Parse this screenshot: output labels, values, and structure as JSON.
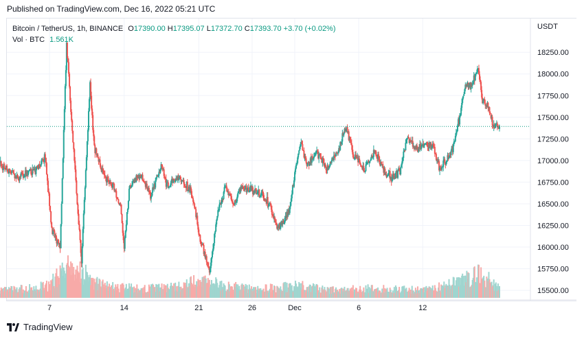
{
  "header": {
    "published": "Published on TradingView.com, Dec 16, 2022 05:21 UTC"
  },
  "legend": {
    "symbol": "Bitcoin / TetherUS, 1h, BINANCE",
    "open_label": "O",
    "open": "17390.00",
    "high_label": "H",
    "high": "17395.07",
    "low_label": "L",
    "low": "17372.70",
    "close_label": "C",
    "close": "17393.70",
    "change": "+3.70 (+0.02%)",
    "vol_label": "Vol · BTC",
    "vol": "1.561K"
  },
  "footer": {
    "brand": "TradingView"
  },
  "colors": {
    "up": "#26a69a",
    "down": "#ef5350",
    "up_vol": "#9fd5cf",
    "down_vol": "#f7aaa8",
    "last_price": "#089981",
    "grid": "#f0f3fa",
    "text": "#131722"
  },
  "chart_data": {
    "type": "candlestick",
    "symbol": "Bitcoin / TetherUS",
    "interval": "1h",
    "exchange": "BINANCE",
    "y_axis_unit": "USDT",
    "ylim": [
      15390,
      18640
    ],
    "y_ticks": [
      "18250.00",
      "18000.00",
      "17750.00",
      "17500.00",
      "17250.00",
      "17000.00",
      "16750.00",
      "16500.00",
      "16250.00",
      "16000.00",
      "15750.00",
      "15500.00"
    ],
    "x_ticks": [
      {
        "label": "7",
        "day": 7
      },
      {
        "label": "14",
        "day": 14
      },
      {
        "label": "21",
        "day": 21
      },
      {
        "label": "26",
        "day": 26
      },
      {
        "label": "Dec",
        "day": 30
      },
      {
        "label": "6",
        "day": 36
      },
      {
        "label": "12",
        "day": 42
      }
    ],
    "last_price": 17393.7,
    "last_price_label": "17393.70",
    "last_volume_label": "1.561K",
    "price_path": [
      [
        2.0,
        17000
      ],
      [
        4.0,
        16800
      ],
      [
        5.8,
        16900
      ],
      [
        6.6,
        17050
      ],
      [
        7.2,
        16200
      ],
      [
        8.0,
        16000
      ],
      [
        8.6,
        18350
      ],
      [
        9.2,
        17200
      ],
      [
        10.0,
        15850
      ],
      [
        10.8,
        17900
      ],
      [
        11.2,
        17150
      ],
      [
        12.0,
        16850
      ],
      [
        13.0,
        16700
      ],
      [
        13.7,
        16450
      ],
      [
        14.0,
        16000
      ],
      [
        14.5,
        16700
      ],
      [
        15.5,
        16850
      ],
      [
        16.5,
        16600
      ],
      [
        17.5,
        16950
      ],
      [
        18.0,
        16700
      ],
      [
        19.0,
        16800
      ],
      [
        20.0,
        16700
      ],
      [
        20.5,
        16550
      ],
      [
        21.0,
        16150
      ],
      [
        21.5,
        15950
      ],
      [
        22.0,
        15700
      ],
      [
        22.7,
        16350
      ],
      [
        23.5,
        16700
      ],
      [
        24.3,
        16500
      ],
      [
        25.0,
        16700
      ],
      [
        26.0,
        16650
      ],
      [
        27.0,
        16600
      ],
      [
        27.8,
        16450
      ],
      [
        28.3,
        16200
      ],
      [
        29.0,
        16300
      ],
      [
        29.6,
        16480
      ],
      [
        30.1,
        16950
      ],
      [
        30.6,
        17200
      ],
      [
        31.2,
        16950
      ],
      [
        32.0,
        17100
      ],
      [
        33.0,
        16900
      ],
      [
        34.0,
        17100
      ],
      [
        34.8,
        17380
      ],
      [
        35.5,
        17050
      ],
      [
        36.5,
        16900
      ],
      [
        37.5,
        17100
      ],
      [
        38.5,
        16850
      ],
      [
        39.3,
        16800
      ],
      [
        39.9,
        16900
      ],
      [
        40.5,
        17250
      ],
      [
        41.5,
        17120
      ],
      [
        42.0,
        17180
      ],
      [
        43.0,
        17150
      ],
      [
        43.6,
        16900
      ],
      [
        44.4,
        17050
      ],
      [
        45.0,
        17200
      ],
      [
        45.6,
        17600
      ],
      [
        46.0,
        17850
      ],
      [
        46.6,
        17850
      ],
      [
        47.2,
        18100
      ],
      [
        47.6,
        17700
      ],
      [
        48.1,
        17650
      ],
      [
        48.6,
        17400
      ],
      [
        49.2,
        17380
      ]
    ],
    "volume_path": [
      [
        2.0,
        0.25
      ],
      [
        5.0,
        0.3
      ],
      [
        7.0,
        0.4
      ],
      [
        8.5,
        1.0
      ],
      [
        10.0,
        0.9
      ],
      [
        11.0,
        0.5
      ],
      [
        13.0,
        0.35
      ],
      [
        16.0,
        0.3
      ],
      [
        19.0,
        0.35
      ],
      [
        21.5,
        0.6
      ],
      [
        23.0,
        0.4
      ],
      [
        26.0,
        0.3
      ],
      [
        29.0,
        0.35
      ],
      [
        30.5,
        0.4
      ],
      [
        33.0,
        0.25
      ],
      [
        36.0,
        0.3
      ],
      [
        39.0,
        0.3
      ],
      [
        42.0,
        0.25
      ],
      [
        44.0,
        0.4
      ],
      [
        46.0,
        0.6
      ],
      [
        47.5,
        0.8
      ],
      [
        49.2,
        0.3
      ]
    ]
  }
}
